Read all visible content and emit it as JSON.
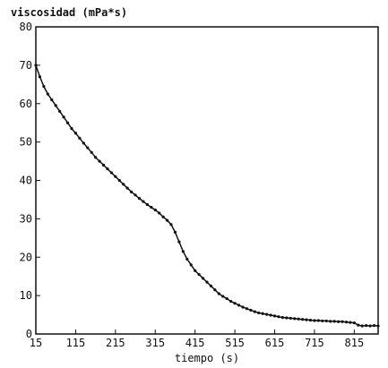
{
  "chart_data": {
    "type": "line",
    "title": "viscosidad (mPa*s)",
    "xlabel": "tiempo (s)",
    "ylabel": "",
    "xlim": [
      15,
      875
    ],
    "ylim": [
      0,
      80
    ],
    "x_ticks": [
      15,
      115,
      215,
      315,
      415,
      515,
      615,
      715,
      815
    ],
    "y_ticks": [
      0,
      10,
      20,
      30,
      40,
      50,
      60,
      70,
      80
    ],
    "grid": false,
    "colors": {
      "line": "#111111",
      "axes": "#111111"
    },
    "series": [
      {
        "x": [
          15,
          25,
          35,
          45,
          55,
          65,
          75,
          85,
          95,
          105,
          115,
          125,
          135,
          145,
          155,
          165,
          175,
          185,
          195,
          205,
          215,
          225,
          235,
          245,
          255,
          265,
          275,
          285,
          295,
          305,
          315,
          325,
          335,
          345,
          355,
          365,
          375,
          385,
          395,
          405,
          415,
          425,
          435,
          445,
          455,
          465,
          475,
          485,
          495,
          505,
          515,
          525,
          535,
          545,
          555,
          565,
          575,
          585,
          595,
          605,
          615,
          625,
          635,
          645,
          655,
          665,
          675,
          685,
          695,
          705,
          715,
          725,
          735,
          745,
          755,
          765,
          775,
          785,
          795,
          805,
          815,
          825,
          835,
          845,
          855,
          865,
          875
        ],
        "values": [
          70,
          67,
          64.5,
          62.5,
          61,
          59.5,
          58,
          56.5,
          55,
          53.5,
          52.3,
          51,
          49.7,
          48.5,
          47.3,
          46,
          45,
          44,
          43,
          42,
          41,
          40,
          39,
          38,
          37,
          36.2,
          35.3,
          34.5,
          33.7,
          33,
          32.3,
          31.5,
          30.5,
          29.6,
          28.5,
          26.5,
          24,
          21.5,
          19.5,
          18,
          16.5,
          15.5,
          14.5,
          13.5,
          12.5,
          11.5,
          10.5,
          9.8,
          9.2,
          8.5,
          8,
          7.5,
          7,
          6.6,
          6.2,
          5.8,
          5.5,
          5.3,
          5.1,
          4.9,
          4.7,
          4.5,
          4.3,
          4.2,
          4.1,
          4.0,
          3.9,
          3.8,
          3.7,
          3.6,
          3.5,
          3.5,
          3.4,
          3.4,
          3.3,
          3.3,
          3.2,
          3.2,
          3.1,
          3.0,
          2.9,
          2.3,
          2.1,
          2.2,
          2.1,
          2.2,
          2.1
        ]
      }
    ]
  }
}
